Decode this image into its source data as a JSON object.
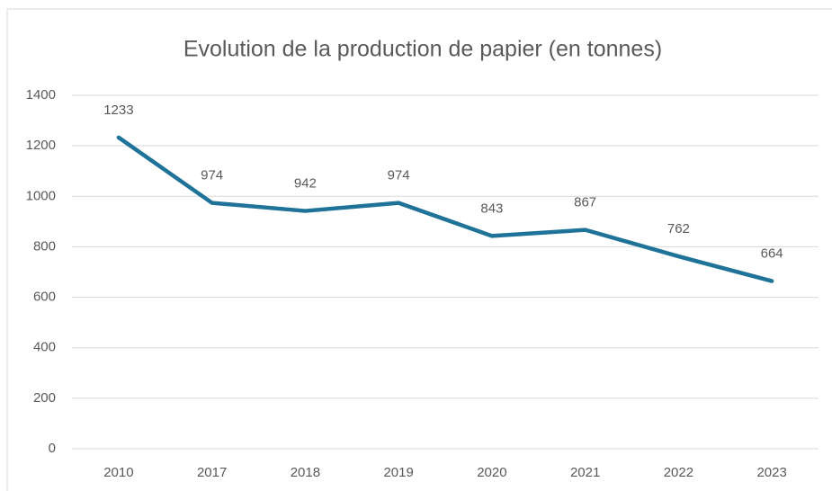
{
  "chart_data": {
    "type": "line",
    "title": "Evolution de la production de papier (en tonnes)",
    "categories": [
      "2010",
      "2017",
      "2018",
      "2019",
      "2020",
      "2021",
      "2022",
      "2023"
    ],
    "values": [
      1233,
      974,
      942,
      974,
      843,
      867,
      762,
      664
    ],
    "color": "#1f7399",
    "ylim": [
      0,
      1400
    ],
    "yticks": [
      0,
      200,
      400,
      600,
      800,
      1000,
      1200,
      1400
    ],
    "grid": true
  }
}
